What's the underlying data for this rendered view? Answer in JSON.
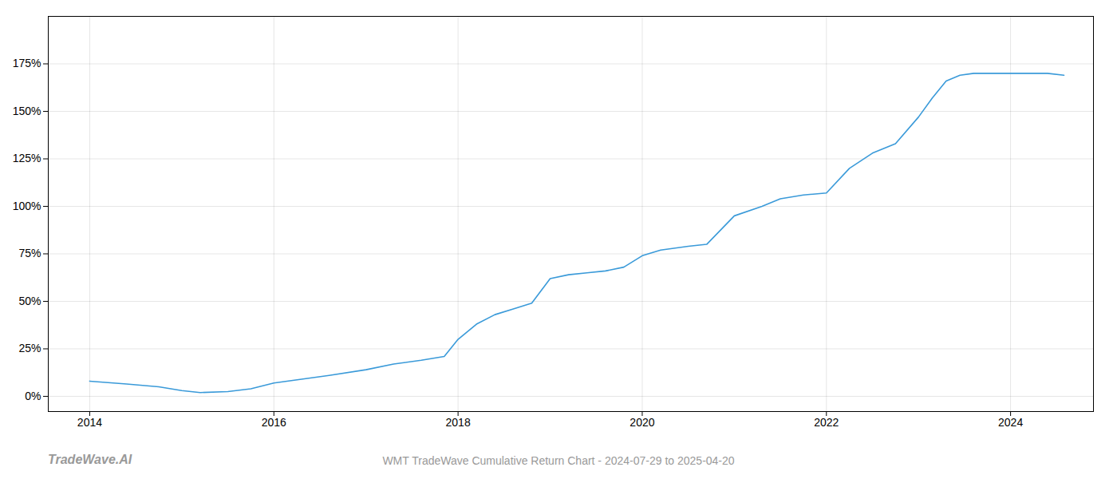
{
  "chart_data": {
    "type": "line",
    "title": "WMT TradeWave Cumulative Return Chart - 2024-07-29 to 2025-04-20",
    "annotations": [
      "TradeWave.AI"
    ],
    "color": "#3a9ad9",
    "x": [
      2014.0,
      2014.4,
      2014.75,
      2015.0,
      2015.2,
      2015.5,
      2015.75,
      2016.0,
      2016.3,
      2016.6,
      2017.0,
      2017.3,
      2017.6,
      2017.85,
      2018.0,
      2018.2,
      2018.4,
      2018.6,
      2018.8,
      2019.0,
      2019.2,
      2019.4,
      2019.6,
      2019.8,
      2020.0,
      2020.2,
      2020.5,
      2020.7,
      2021.0,
      2021.3,
      2021.5,
      2021.75,
      2022.0,
      2022.25,
      2022.5,
      2022.75,
      2023.0,
      2023.15,
      2023.3,
      2023.45,
      2023.6,
      2023.8,
      2024.0,
      2024.2,
      2024.4,
      2024.58
    ],
    "values": [
      8,
      6.5,
      5,
      3,
      2,
      2.5,
      4,
      7,
      9,
      11,
      14,
      17,
      19,
      21,
      30,
      38,
      43,
      46,
      49,
      62,
      64,
      65,
      66,
      68,
      74,
      77,
      79,
      80,
      95,
      100,
      104,
      106,
      107,
      120,
      128,
      133,
      147,
      157,
      166,
      169,
      170,
      170,
      170,
      170,
      170,
      169
    ],
    "xlim": [
      2013.55,
      2024.9
    ],
    "xticks": [
      2014,
      2016,
      2018,
      2020,
      2022,
      2024
    ],
    "ylim": [
      -8,
      200
    ],
    "yticks": [
      {
        "value": 0,
        "label": "0%"
      },
      {
        "value": 25,
        "label": "25%"
      },
      {
        "value": 50,
        "label": "50%"
      },
      {
        "value": 75,
        "label": "75%"
      },
      {
        "value": 100,
        "label": "100%"
      },
      {
        "value": 125,
        "label": "125%"
      },
      {
        "value": 150,
        "label": "150%"
      },
      {
        "value": 175,
        "label": "175%"
      }
    ],
    "grid": true
  }
}
